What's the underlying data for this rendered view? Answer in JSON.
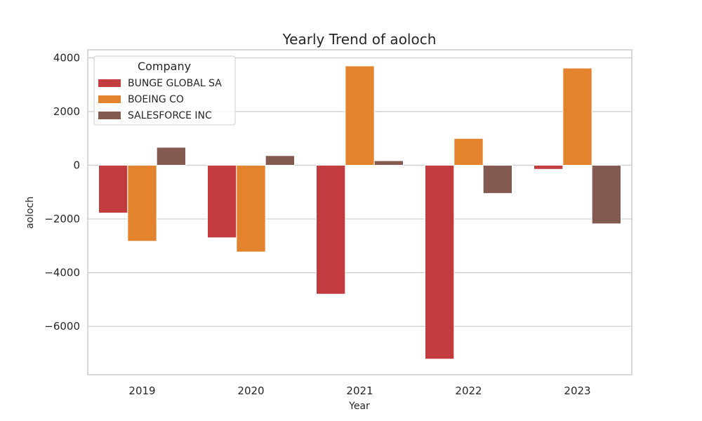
{
  "chart_data": {
    "type": "bar",
    "title": "Yearly Trend of aoloch",
    "xlabel": "Year",
    "ylabel": "aoloch",
    "categories": [
      "2019",
      "2020",
      "2021",
      "2022",
      "2023"
    ],
    "ylim": [
      -7800,
      4300
    ],
    "yticks": [
      -6000,
      -4000,
      -2000,
      0,
      2000,
      4000
    ],
    "ytick_labels": [
      "−6000",
      "−4000",
      "−2000",
      "0",
      "2000",
      "4000"
    ],
    "grid": true,
    "legend": {
      "title": "Company",
      "placement": "top-left"
    },
    "series": [
      {
        "name": "BUNGE GLOBAL SA",
        "color": "#c23b3e",
        "values": [
          -1780,
          -2700,
          -4800,
          -7220,
          -150
        ]
      },
      {
        "name": "BOEING CO",
        "color": "#e3832d",
        "values": [
          -2830,
          -3230,
          3700,
          1000,
          3620
        ]
      },
      {
        "name": "SALESFORCE INC",
        "color": "#845a50",
        "values": [
          670,
          360,
          170,
          -1050,
          -2180
        ]
      }
    ]
  }
}
